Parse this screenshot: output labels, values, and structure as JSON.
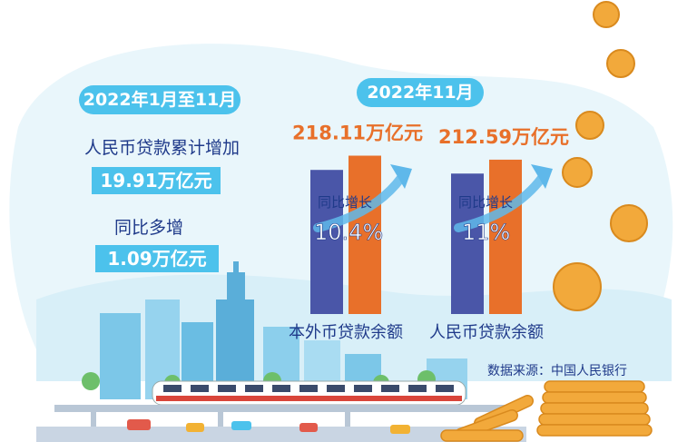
{
  "left_panel": {
    "period_label": "2022年1月至11月",
    "item1_label": "人民币贷款累计增加",
    "item1_value": "19.91万亿元",
    "item2_label": "同比多增",
    "item2_value": "1.09万亿元"
  },
  "right_panel": {
    "period_label": "2022年11月",
    "growth_label": "同比增长"
  },
  "source": "数据来源：中国人民银行",
  "colors": {
    "blue_bar": "#4a56a8",
    "orange_bar": "#e8702a",
    "accent": "#4cc2ec"
  },
  "chart_data": {
    "type": "bar",
    "categories": [
      "本外币贷款余额",
      "人民币贷款余额"
    ],
    "values": [
      218.11,
      212.59
    ],
    "value_labels": [
      "218.11万亿元",
      "212.59万亿元"
    ],
    "growth_rates": [
      10.4,
      11
    ],
    "growth_labels": [
      "10.4%",
      "11%"
    ]
  }
}
